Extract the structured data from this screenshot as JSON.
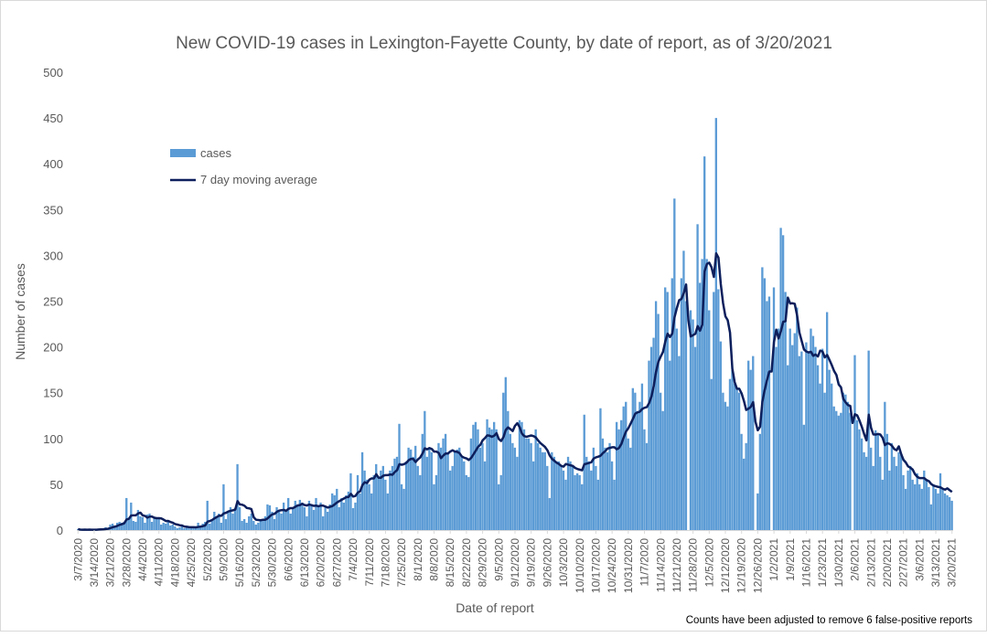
{
  "chart_data": {
    "type": "bar",
    "title": "New COVID-19 cases in Lexington-Fayette County, by date of report, as of 3/20/2021",
    "xlabel": "Date of report",
    "ylabel": "Number of cases",
    "ylim": [
      0,
      500
    ],
    "yticks": [
      "0",
      "50",
      "100",
      "150",
      "200",
      "250",
      "300",
      "350",
      "400",
      "450",
      "500"
    ],
    "grid": false,
    "legend_position": "top-left",
    "legend": [
      "cases",
      "7 day moving average"
    ],
    "footnote": "Counts have been adjusted to remove 6 false-positive reports",
    "start_date": "3/7/2020",
    "end_date": "3/20/2021",
    "xtick_labels": [
      "3/7/2020",
      "3/14/2020",
      "3/21/2020",
      "3/28/2020",
      "4/4/2020",
      "4/11/2020",
      "4/18/2020",
      "4/25/2020",
      "5/2/2020",
      "5/9/2020",
      "5/16/2020",
      "5/23/2020",
      "5/30/2020",
      "6/6/2020",
      "6/13/2020",
      "6/20/2020",
      "6/27/2020",
      "7/4/2020",
      "7/11/2020",
      "7/18/2020",
      "7/25/2020",
      "8/1/2020",
      "8/8/2020",
      "8/15/2020",
      "8/22/2020",
      "8/29/2020",
      "9/5/2020",
      "9/12/2020",
      "9/19/2020",
      "9/26/2020",
      "10/3/2020",
      "10/10/2020",
      "10/17/2020",
      "10/24/2020",
      "10/31/2020",
      "11/7/2020",
      "11/14/2020",
      "11/21/2020",
      "11/28/2020",
      "12/5/2020",
      "12/12/2020",
      "12/19/2020",
      "12/26/2020",
      "1/2/2021",
      "1/9/2021",
      "1/16/2021",
      "1/23/2021",
      "1/30/2021",
      "2/6/2021",
      "2/13/2021",
      "2/20/2021",
      "2/27/2021",
      "3/6/2021",
      "3/13/2021",
      "3/20/2021"
    ],
    "series": [
      {
        "name": "cases",
        "kind": "bar",
        "color": "#5B9BD5",
        "values": [
          1,
          0,
          0,
          1,
          0,
          1,
          0,
          1,
          0,
          1,
          2,
          1,
          3,
          2,
          6,
          7,
          5,
          8,
          9,
          8,
          9,
          35,
          12,
          30,
          10,
          9,
          22,
          15,
          14,
          8,
          17,
          18,
          9,
          13,
          12,
          14,
          6,
          8,
          7,
          10,
          5,
          6,
          4,
          2,
          3,
          5,
          2,
          3,
          4,
          3,
          2,
          2,
          8,
          4,
          7,
          9,
          32,
          7,
          10,
          20,
          14,
          18,
          8,
          50,
          12,
          20,
          25,
          18,
          24,
          72,
          25,
          10,
          12,
          8,
          15,
          18,
          10,
          6,
          8,
          10,
          12,
          15,
          28,
          27,
          20,
          12,
          25,
          22,
          18,
          30,
          20,
          35,
          18,
          25,
          32,
          28,
          33,
          30,
          25,
          15,
          32,
          28,
          22,
          35,
          25,
          30,
          15,
          25,
          20,
          28,
          40,
          38,
          45,
          25,
          35,
          30,
          38,
          42,
          62,
          24,
          30,
          60,
          40,
          85,
          65,
          55,
          50,
          40,
          60,
          72,
          58,
          65,
          70,
          55,
          40,
          65,
          70,
          78,
          80,
          116,
          50,
          45,
          75,
          90,
          88,
          80,
          92,
          70,
          60,
          105,
          130,
          80,
          90,
          85,
          50,
          60,
          95,
          90,
          100,
          105,
          85,
          65,
          70,
          85,
          88,
          90,
          80,
          75,
          60,
          58,
          100,
          115,
          118,
          110,
          90,
          95,
          75,
          121,
          112,
          110,
          118,
          110,
          50,
          60,
          150,
          167,
          130,
          105,
          95,
          90,
          80,
          120,
          118,
          110,
          100,
          100,
          95,
          75,
          110,
          95,
          90,
          85,
          85,
          70,
          35,
          85,
          80,
          75,
          75,
          70,
          65,
          55,
          80,
          75,
          70,
          60,
          62,
          60,
          50,
          126,
          80,
          75,
          65,
          90,
          70,
          55,
          133,
          100,
          90,
          85,
          95,
          75,
          55,
          118,
          110,
          120,
          135,
          140,
          100,
          90,
          155,
          150,
          130,
          140,
          160,
          110,
          95,
          185,
          200,
          210,
          250,
          236,
          150,
          130,
          265,
          260,
          185,
          275,
          362,
          220,
          190,
          275,
          305,
          250,
          0,
          240,
          230,
          200,
          334,
          270,
          296,
          408,
          296,
          240,
          165,
          260,
          450,
          263,
          206,
          150,
          140,
          135,
          165,
          175,
          160,
          155,
          150,
          105,
          78,
          95,
          185,
          175,
          190,
          0,
          40,
          105,
          287,
          275,
          250,
          255,
          0,
          265,
          200,
          220,
          330,
          322,
          260,
          180,
          220,
          202,
          215,
          243,
          190,
          195,
          115,
          205,
          195,
          220,
          212,
          200,
          180,
          160,
          198,
          150,
          238,
          175,
          160,
          135,
          130,
          125,
          128,
          150,
          148,
          140,
          128,
          0,
          191,
          120,
          110,
          100,
          85,
          80,
          196,
          90,
          70,
          109,
          105,
          80,
          55,
          140,
          105,
          65,
          95,
          80,
          70,
          85,
          82,
          60,
          45,
          65,
          70,
          55,
          50,
          62,
          50,
          45,
          65,
          55,
          47,
          28,
          50,
          45,
          40,
          62,
          44,
          40,
          38,
          36,
          32
        ]
      },
      {
        "name": "7 day moving average",
        "kind": "line",
        "color": "#0D1F5C",
        "window": 7
      }
    ]
  }
}
